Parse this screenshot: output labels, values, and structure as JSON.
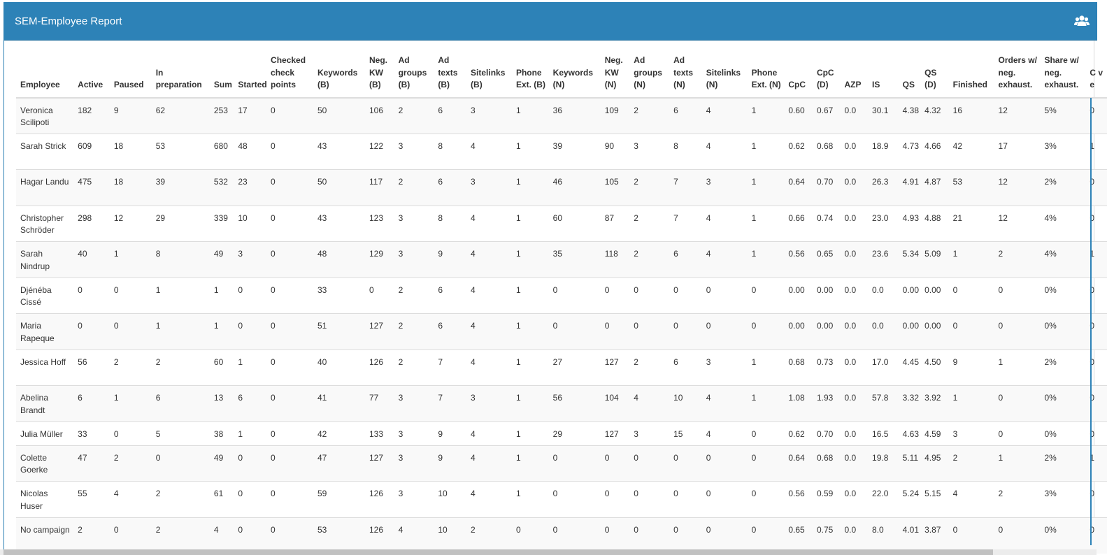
{
  "panel": {
    "title": "SEM-Employee Report",
    "icon": "users-icon",
    "accent_color": "#2d82b7"
  },
  "table": {
    "headers": [
      "Employee",
      "Active",
      "Paused",
      "In preparation",
      "Sum",
      "Started",
      "Checked check points",
      "Keywords (B)",
      "Neg. KW (B)",
      "Ad groups (B)",
      "Ad texts (B)",
      "Sitelinks (B)",
      "Phone Ext. (B)",
      "Keywords (N)",
      "Neg. KW (N)",
      "Ad groups (N)",
      "Ad texts (N)",
      "Sitelinks (N)",
      "Phone Ext. (N)",
      "CpC",
      "CpC (D)",
      "AZP",
      "IS",
      "QS",
      "QS (D)",
      "Finished",
      "Orders w/ neg. exhaust.",
      "Share w/ neg. exhaust.",
      "C v e"
    ],
    "rows": [
      [
        "Veronica Scilipoti",
        "182",
        "9",
        "62",
        "253",
        "17",
        "0",
        "50",
        "106",
        "2",
        "6",
        "3",
        "1",
        "36",
        "109",
        "2",
        "6",
        "4",
        "1",
        "0.60",
        "0.67",
        "0.0",
        "30.1",
        "4.38",
        "4.32",
        "16",
        "12",
        "5%",
        "0"
      ],
      [
        "Sarah Strick",
        "609",
        "18",
        "53",
        "680",
        "48",
        "0",
        "43",
        "122",
        "3",
        "8",
        "4",
        "1",
        "39",
        "90",
        "3",
        "8",
        "4",
        "1",
        "0.62",
        "0.68",
        "0.0",
        "18.9",
        "4.73",
        "4.66",
        "42",
        "17",
        "3%",
        "1"
      ],
      [
        "Hagar Landu",
        "475",
        "18",
        "39",
        "532",
        "23",
        "0",
        "50",
        "117",
        "2",
        "6",
        "3",
        "1",
        "46",
        "105",
        "2",
        "7",
        "3",
        "1",
        "0.64",
        "0.70",
        "0.0",
        "26.3",
        "4.91",
        "4.87",
        "53",
        "12",
        "2%",
        "0"
      ],
      [
        "Christopher Schröder",
        "298",
        "12",
        "29",
        "339",
        "10",
        "0",
        "43",
        "123",
        "3",
        "8",
        "4",
        "1",
        "60",
        "87",
        "2",
        "7",
        "4",
        "1",
        "0.66",
        "0.74",
        "0.0",
        "23.0",
        "4.93",
        "4.88",
        "21",
        "12",
        "4%",
        "0"
      ],
      [
        "Sarah Nindrup",
        "40",
        "1",
        "8",
        "49",
        "3",
        "0",
        "48",
        "129",
        "3",
        "9",
        "4",
        "1",
        "35",
        "118",
        "2",
        "6",
        "4",
        "1",
        "0.56",
        "0.65",
        "0.0",
        "23.6",
        "5.34",
        "5.09",
        "1",
        "2",
        "4%",
        "1"
      ],
      [
        "Djénéba Cissé",
        "0",
        "0",
        "1",
        "1",
        "0",
        "0",
        "33",
        "0",
        "2",
        "6",
        "4",
        "1",
        "0",
        "0",
        "0",
        "0",
        "0",
        "0",
        "0.00",
        "0.00",
        "0.0",
        "0.0",
        "0.00",
        "0.00",
        "0",
        "0",
        "0%",
        "0"
      ],
      [
        "Maria Rapeque",
        "0",
        "0",
        "1",
        "1",
        "0",
        "0",
        "51",
        "127",
        "2",
        "6",
        "4",
        "1",
        "0",
        "0",
        "0",
        "0",
        "0",
        "0",
        "0.00",
        "0.00",
        "0.0",
        "0.0",
        "0.00",
        "0.00",
        "0",
        "0",
        "0%",
        "0"
      ],
      [
        "Jessica Hoff",
        "56",
        "2",
        "2",
        "60",
        "1",
        "0",
        "40",
        "126",
        "2",
        "7",
        "4",
        "1",
        "27",
        "127",
        "2",
        "6",
        "3",
        "1",
        "0.68",
        "0.73",
        "0.0",
        "17.0",
        "4.45",
        "4.50",
        "9",
        "1",
        "2%",
        "0"
      ],
      [
        "Abelina Brandt",
        "6",
        "1",
        "6",
        "13",
        "6",
        "0",
        "41",
        "77",
        "3",
        "7",
        "3",
        "1",
        "56",
        "104",
        "4",
        "10",
        "4",
        "1",
        "1.08",
        "1.93",
        "0.0",
        "57.8",
        "3.32",
        "3.92",
        "1",
        "0",
        "0%",
        "0"
      ],
      [
        "Julia Müller",
        "33",
        "0",
        "5",
        "38",
        "1",
        "0",
        "42",
        "133",
        "3",
        "9",
        "4",
        "1",
        "29",
        "127",
        "3",
        "15",
        "4",
        "0",
        "0.62",
        "0.70",
        "0.0",
        "16.5",
        "4.63",
        "4.59",
        "3",
        "0",
        "0%",
        "0"
      ],
      [
        "Colette Goerke",
        "47",
        "2",
        "0",
        "49",
        "0",
        "0",
        "47",
        "127",
        "3",
        "9",
        "4",
        "1",
        "0",
        "0",
        "0",
        "0",
        "0",
        "0",
        "0.64",
        "0.68",
        "0.0",
        "19.8",
        "5.11",
        "4.95",
        "2",
        "1",
        "2%",
        "1"
      ],
      [
        "Nicolas Huser",
        "55",
        "4",
        "2",
        "61",
        "0",
        "0",
        "59",
        "126",
        "3",
        "10",
        "4",
        "1",
        "0",
        "0",
        "0",
        "0",
        "0",
        "0",
        "0.56",
        "0.59",
        "0.0",
        "22.0",
        "5.24",
        "5.15",
        "4",
        "2",
        "3%",
        "0"
      ],
      [
        "No campaign",
        "2",
        "0",
        "2",
        "4",
        "0",
        "0",
        "53",
        "126",
        "4",
        "10",
        "2",
        "0",
        "0",
        "0",
        "0",
        "0",
        "0",
        "0",
        "0.65",
        "0.75",
        "0.0",
        "8.0",
        "4.01",
        "3.87",
        "0",
        "0",
        "0%",
        "0"
      ]
    ]
  }
}
